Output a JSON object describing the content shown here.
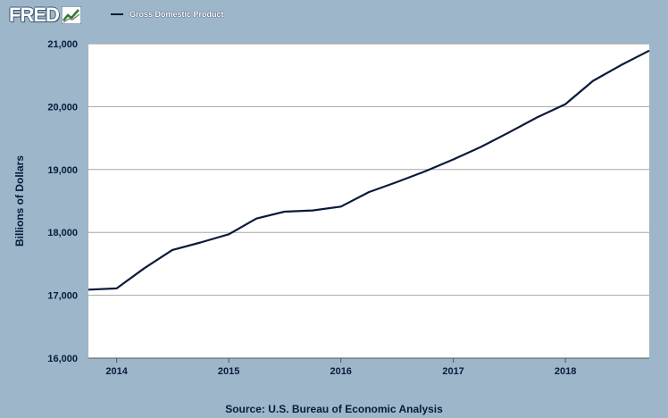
{
  "brand": {
    "logo_text": "FRED",
    "logo_icon": "line-graph-icon"
  },
  "colors": {
    "background": "#9db6ca",
    "plot_bg": "#ffffff",
    "series": "#0b1a3a",
    "grid": "#a5a5a5"
  },
  "chart_data": {
    "type": "line",
    "title": "",
    "xlabel": "",
    "ylabel": "Billions of Dollars",
    "ylim": [
      16000,
      21000
    ],
    "xlim": [
      "2013-10-01",
      "2018-10-01"
    ],
    "yticks": [
      16000,
      17000,
      18000,
      19000,
      20000,
      21000
    ],
    "ytick_labels": [
      "16,000",
      "17,000",
      "18,000",
      "19,000",
      "20,000",
      "21,000"
    ],
    "xticks": [
      "2014-01-01",
      "2015-01-01",
      "2016-01-01",
      "2017-01-01",
      "2018-01-01"
    ],
    "xtick_labels": [
      "2014",
      "2015",
      "2016",
      "2017",
      "2018"
    ],
    "grid": true,
    "legend": "top-left",
    "series": [
      {
        "name": "Gross Domestic Product",
        "x": [
          "2013-10-01",
          "2014-01-01",
          "2014-04-01",
          "2014-07-01",
          "2014-10-01",
          "2015-01-01",
          "2015-04-01",
          "2015-07-01",
          "2015-10-01",
          "2016-01-01",
          "2016-04-01",
          "2016-07-01",
          "2016-10-01",
          "2017-01-01",
          "2017-04-01",
          "2017-07-01",
          "2017-10-01",
          "2018-01-01",
          "2018-04-01",
          "2018-07-01",
          "2018-10-01"
        ],
        "values": [
          17090,
          17110,
          17430,
          17720,
          17840,
          17970,
          18220,
          18330,
          18350,
          18410,
          18640,
          18800,
          18970,
          19160,
          19360,
          19590,
          19830,
          20040,
          20410,
          20660,
          20890
        ]
      }
    ]
  },
  "source": "Source: U.S. Bureau of Economic Analysis"
}
